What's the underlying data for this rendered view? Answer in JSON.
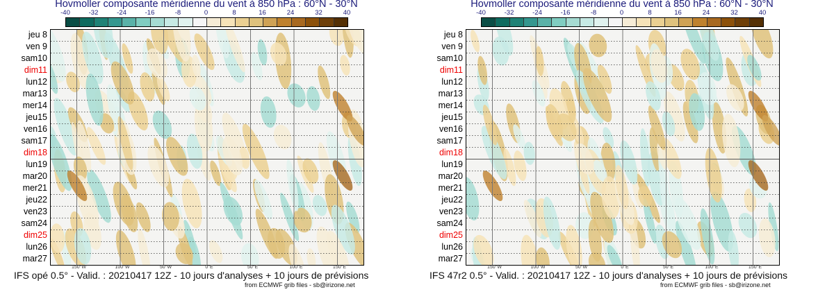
{
  "colors": [
    "#0a4d45",
    "#0f6b5f",
    "#1f8276",
    "#35978f",
    "#5ab2a8",
    "#80cdc1",
    "#a6dcd3",
    "#c7eae5",
    "#e0f2ef",
    "#f5f5f5",
    "#f6ecd6",
    "#f6e3b8",
    "#ebd092",
    "#dfc27d",
    "#cfa255",
    "#bf812d",
    "#a86920",
    "#8c510a",
    "#6e3f08",
    "#543005"
  ],
  "panels": [
    {
      "title": "Hovmoller composante méridienne du vent à 850 hPa : 60°N - 30°N",
      "footer": "IFS opé 0.5° - Valid. : 20210417 12Z - 10 jours d'analyses + 10 jours de prévisions",
      "source": "from ECMWF grib files - sb@irizone.net"
    },
    {
      "title": "Hovmoller composante méridienne du vent à 850 hPa : 60°N - 30°N",
      "footer": "IFS 47r2 0.5° - Valid. : 20210417 12Z - 10 jours d'analyses + 10 jours de prévisions",
      "source": "from ECMWF grib files - sb@irizone.net"
    }
  ],
  "chart_data": {
    "type": "heatmap",
    "title": "Hovmoller composante méridienne du vent à 850 hPa : 60°N - 30°N",
    "colorbar_ticks": [
      "-40",
      "-32",
      "-24",
      "-16",
      "-8",
      "0",
      "8",
      "16",
      "24",
      "32",
      "40"
    ],
    "colorbar_range": [
      -40,
      40
    ],
    "x_ticks": [
      "150°W",
      "100°W",
      "50°W",
      "0°E",
      "50°E",
      "100°E",
      "150°E"
    ],
    "x_values": [
      -150,
      -100,
      -50,
      0,
      50,
      100,
      150
    ],
    "y_ticks": [
      "jeu 8",
      "ven 9",
      "sam10",
      "dim11",
      "lun12",
      "mar13",
      "mer14",
      "jeu15",
      "ven16",
      "sam17",
      "dim18",
      "lun19",
      "mar20",
      "mer21",
      "jeu22",
      "ven23",
      "sam24",
      "dim25",
      "lun26",
      "mar27"
    ],
    "red_days": [
      "dim11",
      "dim18",
      "dim25"
    ],
    "analysis_forecast_split": "dim18"
  }
}
